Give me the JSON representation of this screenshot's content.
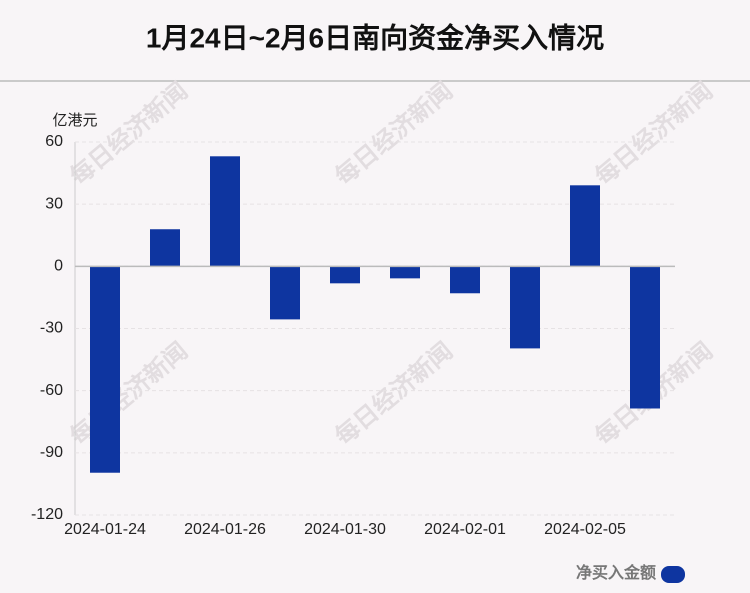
{
  "chart_data": {
    "type": "bar",
    "title": "1月24日~2月6日南向资金净买入情况",
    "y_unit": "亿港元",
    "watermark": "每日经济新闻",
    "categories": [
      "2024-01-24",
      null,
      "2024-01-26",
      null,
      "2024-01-30",
      null,
      "2024-02-01",
      null,
      "2024-02-05",
      null
    ],
    "series": [
      {
        "name": "净买入金额",
        "color": "#0e35a0",
        "values": [
          -99.6,
          17.9,
          53.1,
          -25.6,
          -8.2,
          -5.8,
          -13.0,
          -39.6,
          39.1,
          -68.6
        ]
      }
    ],
    "ylim": [
      -120,
      60
    ],
    "yticks": [
      -120,
      -90,
      -60,
      -30,
      0,
      30,
      60
    ],
    "grid": true
  }
}
